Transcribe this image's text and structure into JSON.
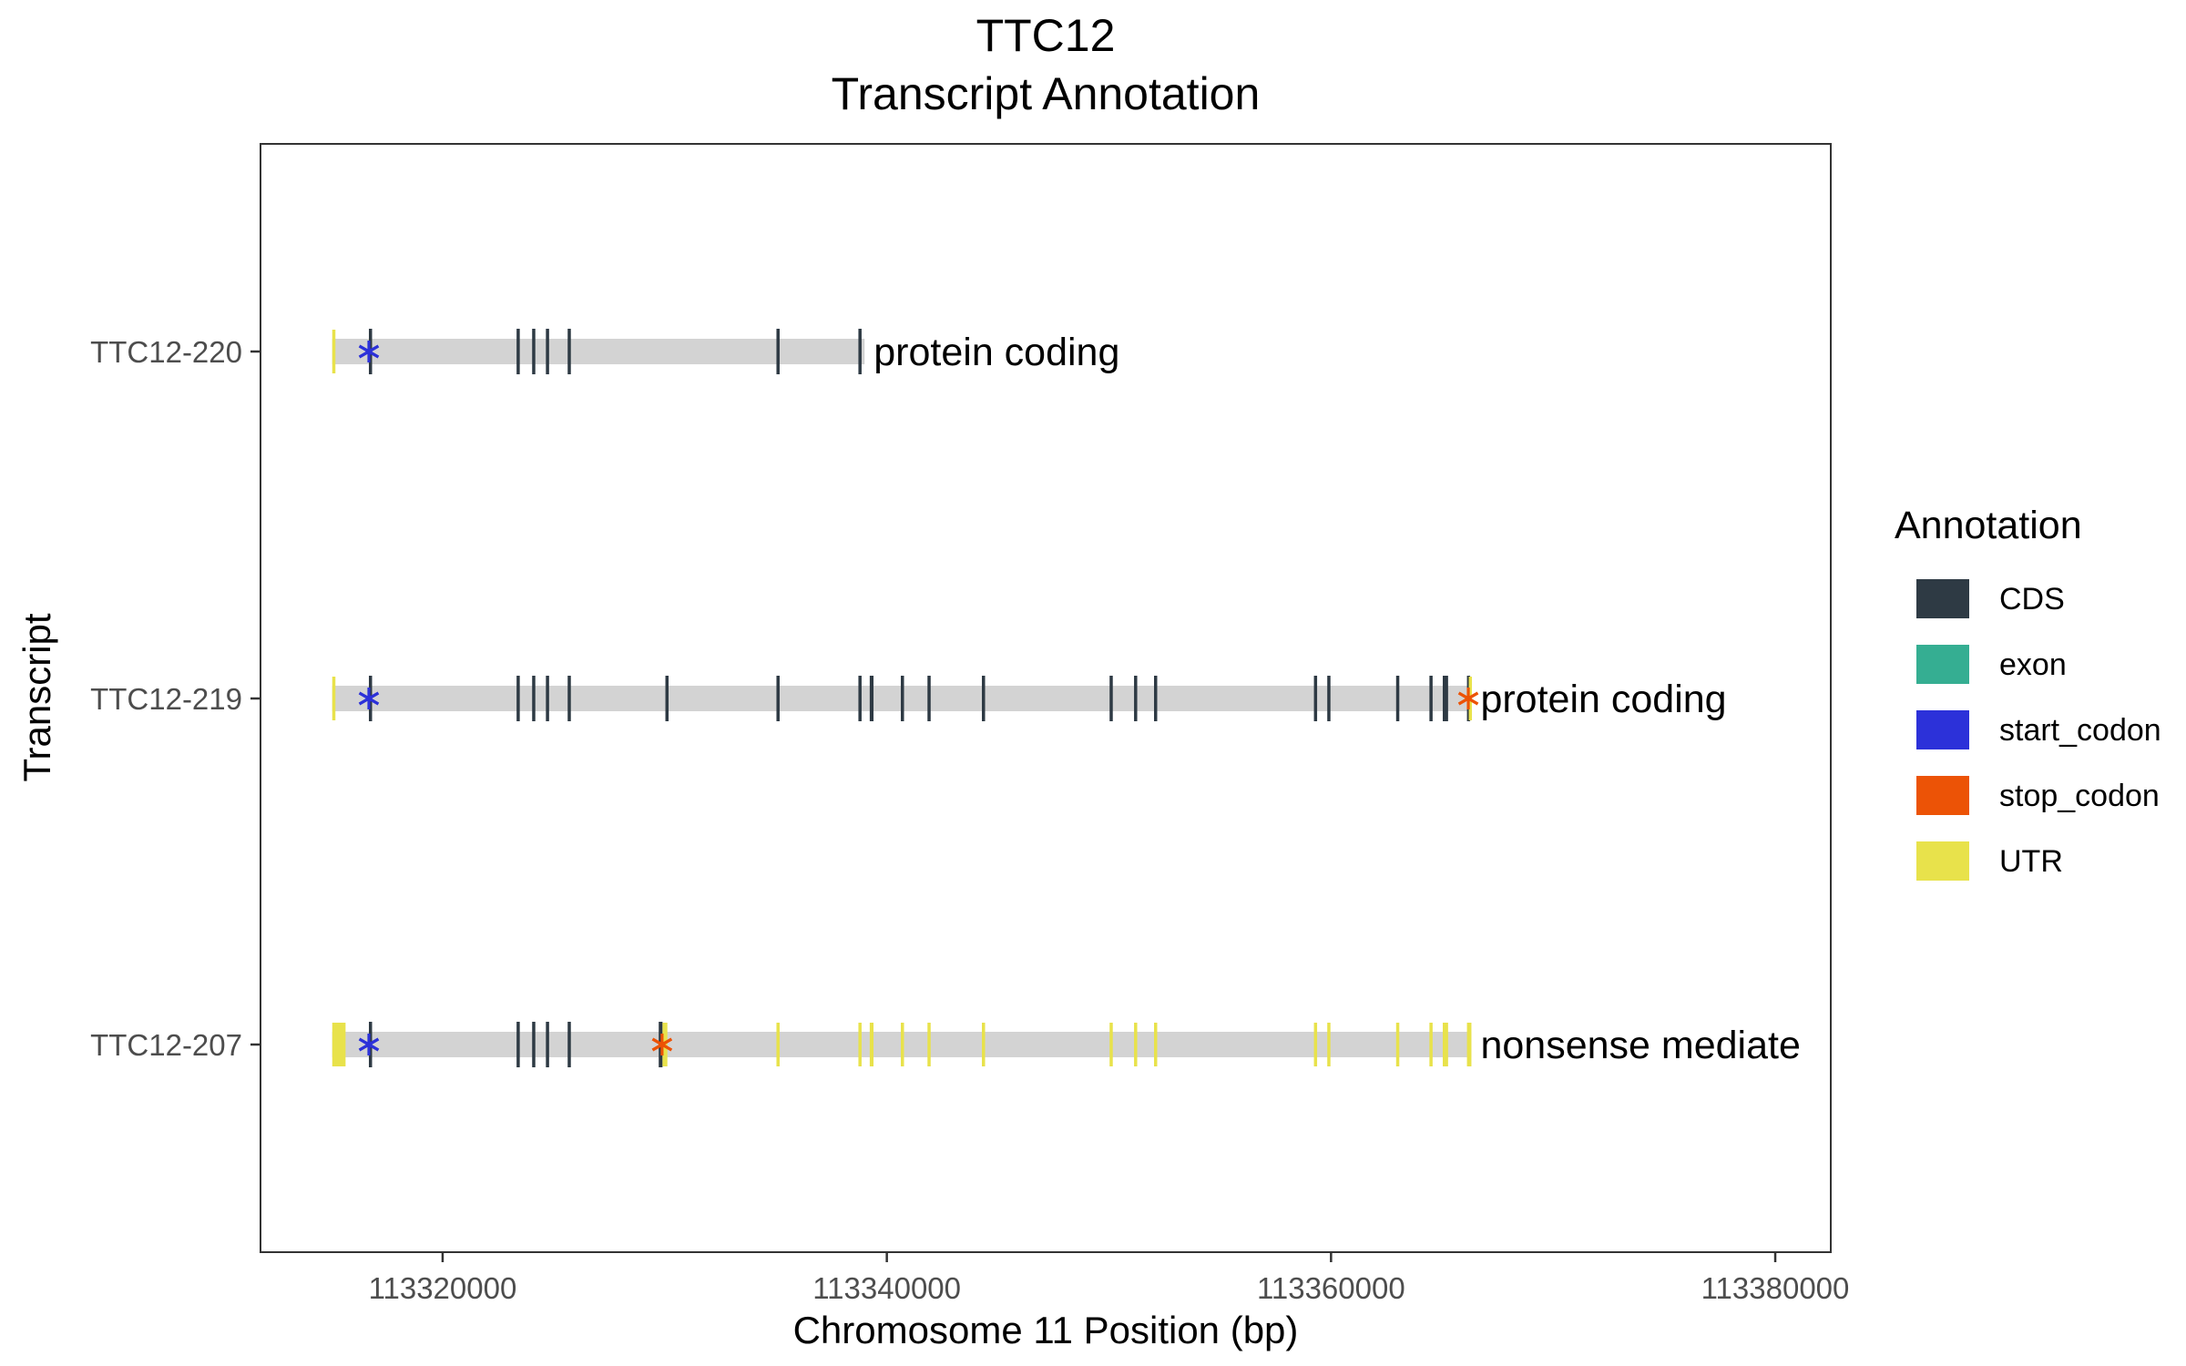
{
  "chart_data": {
    "type": "gene-structure",
    "title": "TTC12",
    "subtitle": "Transcript Annotation",
    "xlabel": "Chromosome 11 Position (bp)",
    "ylabel": "Transcript",
    "xlim": [
      113311800,
      113382500
    ],
    "x_ticks": [
      113320000,
      113340000,
      113360000,
      113380000
    ],
    "x_tick_labels": [
      "113320000",
      "113340000",
      "113360000",
      "113380000"
    ],
    "grid": false,
    "legend": {
      "title": "Annotation",
      "position": "right",
      "items": [
        {
          "label": "CDS",
          "color": "#2e3a44"
        },
        {
          "label": "exon",
          "color": "#35ae92"
        },
        {
          "label": "start_codon",
          "color": "#2c31d9"
        },
        {
          "label": "stop_codon",
          "color": "#ec5306"
        },
        {
          "label": "UTR",
          "color": "#e8e24b"
        }
      ]
    },
    "guide_line_color": "#e6e6e6",
    "intron_color": "#d3d3d3",
    "exon_guides": [
      115080,
      115680,
      116680,
      123380,
      124080,
      124680,
      125680,
      129980,
      130080,
      135080,
      138780,
      139080,
      139380,
      140680,
      141880,
      144280,
      144480,
      150080,
      151180,
      152080,
      159280,
      159880,
      162980,
      164480,
      165080,
      166180,
      166280
    ],
    "transcripts": [
      {
        "name": "TTC12-220",
        "biotype": "protein coding",
        "start": 113315030,
        "end": 113339000,
        "features": [
          {
            "type": "UTR",
            "start": 113315030,
            "end": 113315130
          },
          {
            "type": "CDS",
            "start": 113316680,
            "end": 113316780
          },
          {
            "type": "CDS",
            "start": 113323330,
            "end": 113323450
          },
          {
            "type": "CDS",
            "start": 113324030,
            "end": 113324120
          },
          {
            "type": "CDS",
            "start": 113324650,
            "end": 113324750
          },
          {
            "type": "CDS",
            "start": 113325630,
            "end": 113325750
          },
          {
            "type": "CDS",
            "start": 113335030,
            "end": 113335120
          },
          {
            "type": "CDS",
            "start": 113338720,
            "end": 113338820
          },
          {
            "type": "start_codon",
            "start": 113316680,
            "end": 113316683
          }
        ]
      },
      {
        "name": "TTC12-219",
        "biotype": "protein coding",
        "start": 113315030,
        "end": 113366320,
        "features": [
          {
            "type": "UTR",
            "start": 113315030,
            "end": 113315130
          },
          {
            "type": "CDS",
            "start": 113316680,
            "end": 113316780
          },
          {
            "type": "CDS",
            "start": 113323330,
            "end": 113323450
          },
          {
            "type": "CDS",
            "start": 113324030,
            "end": 113324120
          },
          {
            "type": "CDS",
            "start": 113324650,
            "end": 113324750
          },
          {
            "type": "CDS",
            "start": 113325630,
            "end": 113325750
          },
          {
            "type": "CDS",
            "start": 113330030,
            "end": 113330120
          },
          {
            "type": "CDS",
            "start": 113335030,
            "end": 113335120
          },
          {
            "type": "CDS",
            "start": 113338720,
            "end": 113338820
          },
          {
            "type": "CDS",
            "start": 113339230,
            "end": 113339400
          },
          {
            "type": "CDS",
            "start": 113340630,
            "end": 113340720
          },
          {
            "type": "CDS",
            "start": 113341830,
            "end": 113341920
          },
          {
            "type": "CDS",
            "start": 113344280,
            "end": 113344420
          },
          {
            "type": "CDS",
            "start": 113350030,
            "end": 113350130
          },
          {
            "type": "CDS",
            "start": 113351130,
            "end": 113351230
          },
          {
            "type": "CDS",
            "start": 113352030,
            "end": 113352130
          },
          {
            "type": "CDS",
            "start": 113359230,
            "end": 113359330
          },
          {
            "type": "CDS",
            "start": 113359830,
            "end": 113359930
          },
          {
            "type": "CDS",
            "start": 113362930,
            "end": 113363030
          },
          {
            "type": "CDS",
            "start": 113364430,
            "end": 113364520
          },
          {
            "type": "CDS",
            "start": 113365030,
            "end": 113365270
          },
          {
            "type": "CDS",
            "start": 113366120,
            "end": 113366200
          },
          {
            "type": "UTR",
            "start": 113366200,
            "end": 113366320
          },
          {
            "type": "start_codon",
            "start": 113316680,
            "end": 113316683
          },
          {
            "type": "stop_codon",
            "start": 113366180,
            "end": 113366183
          }
        ]
      },
      {
        "name": "TTC12-207",
        "biotype": "nonsense mediate",
        "start": 113315030,
        "end": 113366320,
        "features": [
          {
            "type": "UTR",
            "start": 113315030,
            "end": 113315630
          },
          {
            "type": "CDS",
            "start": 113316680,
            "end": 113316780
          },
          {
            "type": "CDS",
            "start": 113323330,
            "end": 113323450
          },
          {
            "type": "CDS",
            "start": 113324030,
            "end": 113324120
          },
          {
            "type": "CDS",
            "start": 113324650,
            "end": 113324750
          },
          {
            "type": "CDS",
            "start": 113325630,
            "end": 113325750
          },
          {
            "type": "CDS",
            "start": 113329730,
            "end": 113329900
          },
          {
            "type": "UTR",
            "start": 113329900,
            "end": 113330120
          },
          {
            "type": "UTR",
            "start": 113335030,
            "end": 113335120
          },
          {
            "type": "UTR",
            "start": 113338720,
            "end": 113338820
          },
          {
            "type": "UTR",
            "start": 113339230,
            "end": 113339400
          },
          {
            "type": "UTR",
            "start": 113340630,
            "end": 113340720
          },
          {
            "type": "UTR",
            "start": 113341830,
            "end": 113341920
          },
          {
            "type": "UTR",
            "start": 113344280,
            "end": 113344420
          },
          {
            "type": "UTR",
            "start": 113350030,
            "end": 113350130
          },
          {
            "type": "UTR",
            "start": 113351130,
            "end": 113351230
          },
          {
            "type": "UTR",
            "start": 113352030,
            "end": 113352130
          },
          {
            "type": "UTR",
            "start": 113359230,
            "end": 113359330
          },
          {
            "type": "UTR",
            "start": 113359830,
            "end": 113359930
          },
          {
            "type": "UTR",
            "start": 113362930,
            "end": 113363030
          },
          {
            "type": "UTR",
            "start": 113364430,
            "end": 113364520
          },
          {
            "type": "UTR",
            "start": 113365030,
            "end": 113365270
          },
          {
            "type": "UTR",
            "start": 113366120,
            "end": 113366320
          },
          {
            "type": "start_codon",
            "start": 113316680,
            "end": 113316683
          },
          {
            "type": "stop_codon",
            "start": 113329880,
            "end": 113329883
          }
        ]
      }
    ]
  }
}
